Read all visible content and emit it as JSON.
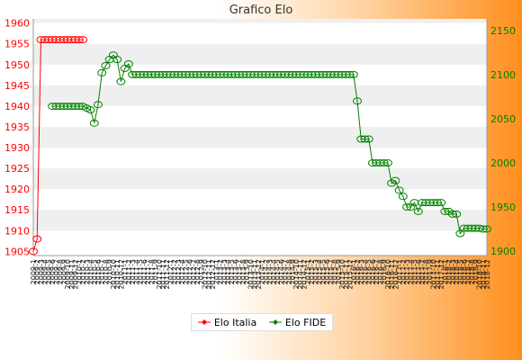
{
  "title": "Grafico Elo",
  "colors": {
    "left_axis": "#ff0000",
    "right_axis": "#008000",
    "series_italia": "#ff0000",
    "series_fide": "#008000",
    "band": "#efefef",
    "plot_bg": "#ffffff"
  },
  "chart_data": {
    "type": "line",
    "title": "Grafico Elo",
    "grid": "horizontal alternating bands",
    "legend": "bottom-center",
    "left_axis": {
      "ticks": [
        "1905",
        "1910",
        "1915",
        "1920",
        "1925",
        "1930",
        "1935",
        "1940",
        "1945",
        "1950",
        "1955",
        "1960"
      ],
      "range": [
        1904,
        1961
      ],
      "series": "Elo Italia"
    },
    "right_axis": {
      "ticks": [
        "1900",
        "1950",
        "2000",
        "2050",
        "2100",
        "2150"
      ],
      "range": [
        1895,
        2163
      ],
      "series": "Elo FIDE"
    },
    "n_points": 120,
    "x_labels": [
      "2009-1",
      "2009-2",
      "2009-3",
      "2009-4",
      "2009-5",
      "2009-6",
      "2009-7",
      "2009-8",
      "2009-9",
      "2009-10",
      "2009-11",
      "2009-12",
      "2010-1",
      "2010-2",
      "2010-3",
      "2010-4",
      "2010-5",
      "2010-6",
      "2010-7",
      "2010-8",
      "2010-9",
      "2010-10",
      "2010-11",
      "2010-12",
      "2011-1",
      "2011-2",
      "2011-3",
      "2011-4",
      "2011-5",
      "2011-6",
      "2011-7",
      "2011-8",
      "2011-9",
      "2011-10",
      "2011-11",
      "2011-12",
      "2012-1",
      "2012-2",
      "2012-3",
      "2012-4",
      "2012-5",
      "2012-6",
      "2012-7",
      "2012-8",
      "2012-9",
      "2012-10",
      "2012-11",
      "2012-12",
      "2013-1",
      "2013-2",
      "2013-3",
      "2013-4",
      "2013-5",
      "2013-6",
      "2013-7",
      "2013-8",
      "2013-9",
      "2013-10",
      "2013-11",
      "2013-12",
      "2014-1",
      "2014-2",
      "2014-3",
      "2014-4",
      "2014-5",
      "2014-6",
      "2014-7",
      "2014-8",
      "2014-9",
      "2014-10",
      "2014-11",
      "2014-12",
      "2015-1",
      "2015-2",
      "2015-3",
      "2015-4",
      "2015-5",
      "2015-6",
      "2015-7",
      "2015-8",
      "2015-9",
      "2015-10",
      "2015-11",
      "2015-12",
      "2016-1",
      "2016-2",
      "2016-3",
      "2016-4",
      "2016-5",
      "2016-6",
      "2016-7",
      "2016-8",
      "2016-9",
      "2016-10",
      "2016-11",
      "2016-12",
      "2017-1",
      "2017-2",
      "2017-3",
      "2017-4",
      "2017-5",
      "2017-6",
      "2017-7",
      "2017-8",
      "2017-9",
      "2017-10",
      "2017-11",
      "2017-12",
      "2018-1",
      "2018-2",
      "2018-3",
      "2018-4",
      "2018-5",
      "2018-6",
      "2018-7",
      "2018-8",
      "2018-9",
      "2018-10",
      "2018-11",
      "2018-12"
    ],
    "series": [
      {
        "name": "Elo Italia",
        "axis": "left",
        "points": [
          [
            0,
            1905
          ],
          [
            1,
            1908
          ],
          [
            2,
            1956
          ],
          [
            3,
            1956
          ],
          [
            4,
            1956
          ],
          [
            5,
            1956
          ],
          [
            6,
            1956
          ],
          [
            7,
            1956
          ],
          [
            8,
            1956
          ],
          [
            9,
            1956
          ],
          [
            10,
            1956
          ],
          [
            11,
            1956
          ],
          [
            12,
            1956
          ],
          [
            13,
            1956
          ]
        ]
      },
      {
        "name": "Elo FIDE",
        "axis": "right",
        "points": [
          [
            5,
            2064
          ],
          [
            6,
            2064
          ],
          [
            7,
            2064
          ],
          [
            8,
            2064
          ],
          [
            9,
            2064
          ],
          [
            10,
            2064
          ],
          [
            11,
            2064
          ],
          [
            12,
            2064
          ],
          [
            13,
            2064
          ],
          [
            14,
            2062
          ],
          [
            15,
            2060
          ],
          [
            16,
            2045
          ],
          [
            17,
            2066
          ],
          [
            18,
            2102
          ],
          [
            19,
            2110
          ],
          [
            20,
            2117
          ],
          [
            21,
            2122
          ],
          [
            22,
            2117
          ],
          [
            23,
            2092
          ],
          [
            24,
            2107
          ],
          [
            25,
            2112
          ],
          [
            26,
            2100
          ],
          [
            27,
            2100
          ],
          [
            28,
            2100
          ],
          [
            29,
            2100
          ],
          [
            30,
            2100
          ],
          [
            31,
            2100
          ],
          [
            32,
            2100
          ],
          [
            33,
            2100
          ],
          [
            34,
            2100
          ],
          [
            35,
            2100
          ],
          [
            36,
            2100
          ],
          [
            37,
            2100
          ],
          [
            38,
            2100
          ],
          [
            39,
            2100
          ],
          [
            40,
            2100
          ],
          [
            41,
            2100
          ],
          [
            42,
            2100
          ],
          [
            43,
            2100
          ],
          [
            44,
            2100
          ],
          [
            45,
            2100
          ],
          [
            46,
            2100
          ],
          [
            47,
            2100
          ],
          [
            48,
            2100
          ],
          [
            49,
            2100
          ],
          [
            50,
            2100
          ],
          [
            51,
            2100
          ],
          [
            52,
            2100
          ],
          [
            53,
            2100
          ],
          [
            54,
            2100
          ],
          [
            55,
            2100
          ],
          [
            56,
            2100
          ],
          [
            57,
            2100
          ],
          [
            58,
            2100
          ],
          [
            59,
            2100
          ],
          [
            60,
            2100
          ],
          [
            61,
            2100
          ],
          [
            62,
            2100
          ],
          [
            63,
            2100
          ],
          [
            64,
            2100
          ],
          [
            65,
            2100
          ],
          [
            66,
            2100
          ],
          [
            67,
            2100
          ],
          [
            68,
            2100
          ],
          [
            69,
            2100
          ],
          [
            70,
            2100
          ],
          [
            71,
            2100
          ],
          [
            72,
            2100
          ],
          [
            73,
            2100
          ],
          [
            74,
            2100
          ],
          [
            75,
            2100
          ],
          [
            76,
            2100
          ],
          [
            77,
            2100
          ],
          [
            78,
            2100
          ],
          [
            79,
            2100
          ],
          [
            80,
            2100
          ],
          [
            81,
            2100
          ],
          [
            82,
            2100
          ],
          [
            83,
            2100
          ],
          [
            84,
            2100
          ],
          [
            85,
            2070
          ],
          [
            86,
            2027
          ],
          [
            87,
            2027
          ],
          [
            88,
            2027
          ],
          [
            89,
            2000
          ],
          [
            90,
            2000
          ],
          [
            91,
            2000
          ],
          [
            92,
            2000
          ],
          [
            93,
            2000
          ],
          [
            94,
            1977
          ],
          [
            95,
            1980
          ],
          [
            96,
            1969
          ],
          [
            97,
            1962
          ],
          [
            98,
            1950
          ],
          [
            99,
            1950
          ],
          [
            100,
            1955
          ],
          [
            101,
            1945
          ],
          [
            102,
            1955
          ],
          [
            103,
            1955
          ],
          [
            104,
            1955
          ],
          [
            105,
            1955
          ],
          [
            106,
            1955
          ],
          [
            107,
            1955
          ],
          [
            108,
            1945
          ],
          [
            109,
            1945
          ],
          [
            110,
            1942
          ],
          [
            111,
            1942
          ],
          [
            112,
            1920
          ],
          [
            113,
            1926
          ],
          [
            114,
            1926
          ],
          [
            115,
            1926
          ],
          [
            116,
            1926
          ],
          [
            117,
            1926
          ],
          [
            118,
            1925
          ],
          [
            119,
            1925
          ]
        ]
      }
    ],
    "fide_tail_note": ""
  },
  "legend": {
    "italia_label": "Elo Italia",
    "fide_label": "Elo FIDE"
  }
}
